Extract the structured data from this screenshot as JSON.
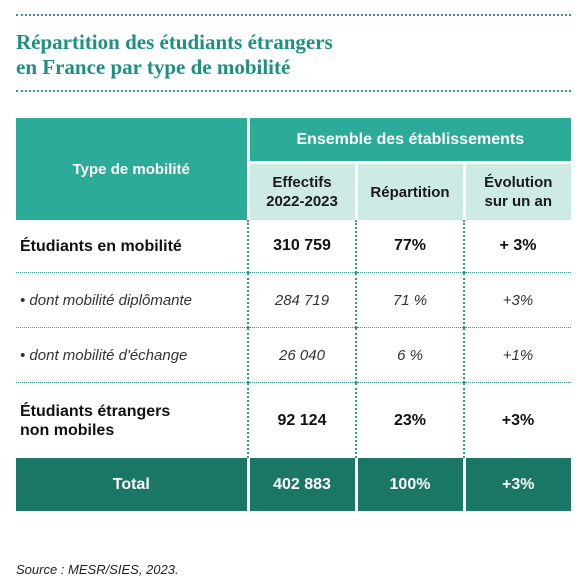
{
  "title": {
    "line1": "Répartition des étudiants étrangers",
    "line2": "en France par type de mobilité"
  },
  "table": {
    "header": {
      "type_label": "Type de mobilité",
      "group_label": "Ensemble des établissements",
      "col_effectifs_line1": "Effectifs",
      "col_effectifs_line2": "2022-2023",
      "col_repartition": "Répartition",
      "col_evolution_line1": "Évolution",
      "col_evolution_line2": "sur un an"
    },
    "rows": [
      {
        "label": "Étudiants en mobilité",
        "effectifs": "310 759",
        "repartition": "77%",
        "evolution": "+ 3%"
      },
      {
        "label": "• dont mobilité diplômante",
        "effectifs": "284 719",
        "repartition": "71 %",
        "evolution": "+3%"
      },
      {
        "label": "• dont mobilité d'échange",
        "effectifs": "26 040",
        "repartition": "6 %",
        "evolution": "+1%"
      },
      {
        "label_line1": "Étudiants étrangers",
        "label_line2": "non mobiles",
        "effectifs": "92 124",
        "repartition": "23%",
        "evolution": "+3%"
      }
    ],
    "total": {
      "label": "Total",
      "effectifs": "402 883",
      "repartition": "100%",
      "evolution": "+3%"
    }
  },
  "source": "Source : MESR/SIES, 2023."
}
